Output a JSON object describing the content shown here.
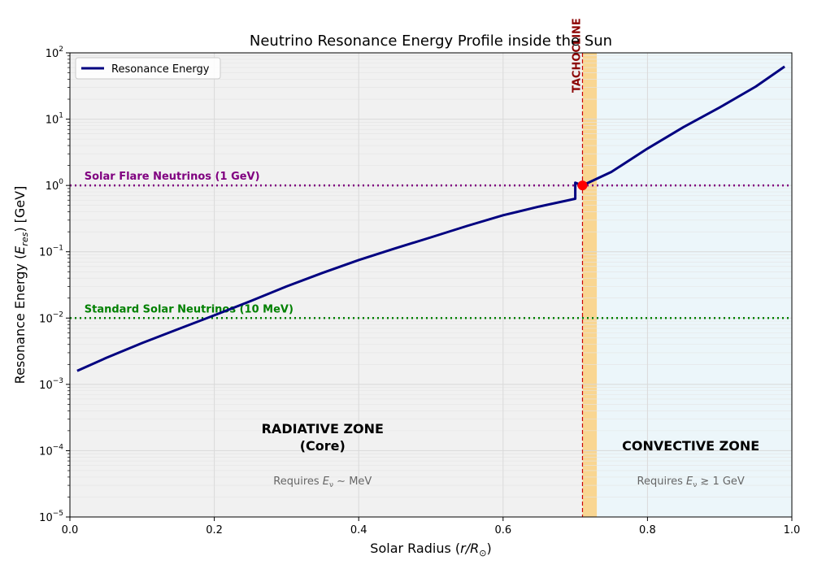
{
  "chart_data": {
    "type": "line",
    "title": "Neutrino Resonance Energy Profile inside the Sun",
    "xlabel_main": "Solar Radius (",
    "xlabel_math": "r/R",
    "xlabel_sub": "⊙",
    "xlabel_close": ")",
    "ylabel_main": "Resonance Energy (",
    "ylabel_math": "E",
    "ylabel_sub": "res",
    "ylabel_close": ") [GeV]",
    "xlim": [
      0,
      1
    ],
    "ylim": [
      1e-05,
      100
    ],
    "yscale": "log",
    "grid": true,
    "x_ticks": [
      "0.0",
      "0.2",
      "0.4",
      "0.6",
      "0.8",
      "1.0"
    ],
    "y_ticks": [
      {
        "base": "10",
        "exp": "−5"
      },
      {
        "base": "10",
        "exp": "−4"
      },
      {
        "base": "10",
        "exp": "−3"
      },
      {
        "base": "10",
        "exp": "−2"
      },
      {
        "base": "10",
        "exp": "−1"
      },
      {
        "base": "10",
        "exp": "0"
      },
      {
        "base": "10",
        "exp": "1"
      },
      {
        "base": "10",
        "exp": "2"
      }
    ],
    "legend": {
      "position": "top-left",
      "entry": "Resonance Energy"
    },
    "series": [
      {
        "name": "Resonance Energy",
        "color": "#000080",
        "points": [
          [
            0.01,
            0.0016
          ],
          [
            0.05,
            0.0025
          ],
          [
            0.1,
            0.0042
          ],
          [
            0.15,
            0.0068
          ],
          [
            0.2,
            0.011
          ],
          [
            0.25,
            0.018
          ],
          [
            0.3,
            0.03
          ],
          [
            0.35,
            0.048
          ],
          [
            0.4,
            0.075
          ],
          [
            0.45,
            0.112
          ],
          [
            0.5,
            0.165
          ],
          [
            0.55,
            0.245
          ],
          [
            0.6,
            0.355
          ],
          [
            0.65,
            0.48
          ],
          [
            0.7,
            0.63
          ],
          [
            0.7,
            1.1
          ],
          [
            0.71,
            1.0
          ],
          [
            0.75,
            1.6
          ],
          [
            0.8,
            3.6
          ],
          [
            0.85,
            7.6
          ],
          [
            0.9,
            15
          ],
          [
            0.95,
            31
          ],
          [
            0.99,
            62
          ]
        ]
      }
    ],
    "marker": {
      "x": 0.71,
      "y": 1.0,
      "color": "#ff0000"
    },
    "reference_lines": [
      {
        "y": 1.0,
        "label": "Solar Flare Neutrinos (1 GeV)",
        "color": "#800080"
      },
      {
        "y": 0.01,
        "label": "Standard Solar Neutrinos (10 MeV)",
        "color": "#008000"
      }
    ],
    "tachocline": {
      "x": 0.71,
      "band": [
        0.71,
        0.73
      ],
      "label": "TACHOCLINE",
      "color": "#cc0000",
      "band_color": "#f9d692"
    },
    "zones": [
      {
        "name": "radiative",
        "range": [
          0,
          0.71
        ],
        "color": "#f1f1f1",
        "label_line1": "RADIATIVE ZONE",
        "label_line2": "(Core)",
        "note_prefix": "Requires ",
        "note_sym": "E",
        "note_sub": "ν",
        "note_suffix": " ∼  MeV"
      },
      {
        "name": "convective",
        "range": [
          0.73,
          1.0
        ],
        "color": "#ecf6fa",
        "label_line1": "CONVECTIVE ZONE",
        "note_prefix": "Requires ",
        "note_sym": "E",
        "note_sub": "ν",
        "note_suffix": " ≳  1 GeV"
      }
    ]
  }
}
